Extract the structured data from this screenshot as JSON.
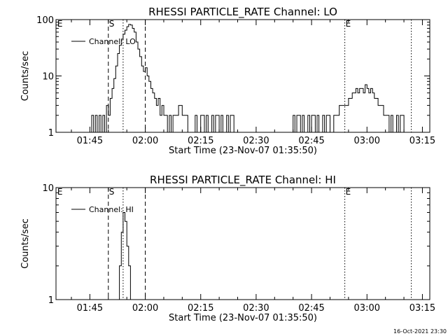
{
  "footer_timestamp": "16-Oct-2021 23:30",
  "chart_data": [
    {
      "type": "line",
      "title": "RHESSI PARTICLE_RATE Channel: LO",
      "xlabel": "Start Time (23-Nov-07 01:35:50)",
      "ylabel": "Counts/sec",
      "yscale": "log",
      "ylim": [
        1,
        100
      ],
      "ytick_values": [
        1,
        10,
        100
      ],
      "ytick_labels": [
        "1",
        "10",
        "100"
      ],
      "xlim": [
        "01:35:50",
        "03:17:00"
      ],
      "xtick_values": [
        "01:45",
        "02:00",
        "02:15",
        "02:30",
        "02:45",
        "03:00",
        "03:15"
      ],
      "xtick_labels": [
        "01:45",
        "02:00",
        "02:15",
        "02:30",
        "02:45",
        "03:00",
        "03:15"
      ],
      "legend": {
        "placement": "top-left",
        "entries": [
          "Channel: LO"
        ]
      },
      "markers": [
        {
          "time": "01:36",
          "label": "E",
          "style": "none"
        },
        {
          "time": "01:50",
          "label": "",
          "style": "dashed"
        },
        {
          "time": "01:50",
          "label": "S",
          "style": "none"
        },
        {
          "time": "01:54",
          "label": "",
          "style": "dotted"
        },
        {
          "time": "02:00",
          "label": "",
          "style": "dashed"
        },
        {
          "time": "02:54",
          "label": "",
          "style": "dotted"
        },
        {
          "time": "02:54",
          "label": "E",
          "style": "none"
        },
        {
          "time": "03:12",
          "label": "",
          "style": "dotted"
        }
      ],
      "series": [
        {
          "x": [
            "01:45:00",
            "01:45:30",
            "01:46:00",
            "01:46:30",
            "01:47:00",
            "01:47:30",
            "01:48:00",
            "01:48:30",
            "01:49:00",
            "01:49:30",
            "01:50:00",
            "01:50:30",
            "01:51:00",
            "01:51:30",
            "01:52:00",
            "01:52:30",
            "01:53:00",
            "01:53:30",
            "01:54:00",
            "01:54:30",
            "01:55:00",
            "01:55:30",
            "01:56:00",
            "01:56:30",
            "01:57:00",
            "01:57:30",
            "01:58:00",
            "01:58:30",
            "01:59:00",
            "01:59:30",
            "02:00:00",
            "02:00:30",
            "02:01:00",
            "02:01:30",
            "02:02:00",
            "02:02:30",
            "02:03:00",
            "02:03:30",
            "02:04:00",
            "02:04:30",
            "02:05:00",
            "02:05:30",
            "02:06:00",
            "02:06:30",
            "02:07:00",
            "02:07:30",
            "02:08:00",
            "02:08:30",
            "02:09:00",
            "02:09:30",
            "02:10:00",
            "02:10:30",
            "02:11:00",
            "02:11:30",
            "02:12:00",
            "02:12:30",
            "02:13:00",
            "02:13:30",
            "02:14:00",
            "02:15:00",
            "02:16:00",
            "02:16:30",
            "02:17:00",
            "02:18:00",
            "02:18:30",
            "02:19:00",
            "02:20:00",
            "02:20:30",
            "02:21:00",
            "02:22:00",
            "02:22:30",
            "02:23:00",
            "02:24:00",
            "02:40:00",
            "02:40:30",
            "02:41:00",
            "02:42:00",
            "02:42:30",
            "02:43:00",
            "02:44:00",
            "02:44:30",
            "02:45:00",
            "02:46:00",
            "02:46:30",
            "02:47:00",
            "02:48:00",
            "02:48:30",
            "02:49:00",
            "02:50:00",
            "02:51:00",
            "02:51:30",
            "02:52:00",
            "02:52:30",
            "02:53:00",
            "02:53:30",
            "02:54:00",
            "02:54:30",
            "02:55:00",
            "02:55:30",
            "02:56:00",
            "02:56:30",
            "02:57:00",
            "02:57:30",
            "02:58:00",
            "02:58:30",
            "02:59:00",
            "02:59:30",
            "03:00:00",
            "03:00:30",
            "03:01:00",
            "03:01:30",
            "03:02:00",
            "03:02:30",
            "03:03:00",
            "03:03:30",
            "03:04:00",
            "03:04:30",
            "03:05:00",
            "03:06:00",
            "03:06:30",
            "03:07:00",
            "03:08:00",
            "03:08:30",
            "03:09:00",
            "03:10:00"
          ],
          "y": [
            1,
            2,
            1,
            2,
            1,
            2,
            1,
            2,
            1,
            3,
            2,
            4,
            6,
            9,
            15,
            25,
            35,
            45,
            55,
            65,
            75,
            82,
            80,
            70,
            60,
            40,
            30,
            22,
            15,
            12,
            14,
            10,
            8,
            6,
            5,
            4,
            3,
            4,
            2,
            3,
            2,
            2,
            1,
            2,
            1,
            2,
            2,
            2,
            3,
            3,
            2,
            2,
            2,
            1,
            1,
            1,
            1,
            2,
            1,
            2,
            1,
            2,
            1,
            2,
            1,
            2,
            1,
            2,
            1,
            2,
            1,
            2,
            1,
            2,
            1,
            2,
            1,
            2,
            1,
            2,
            1,
            2,
            1,
            2,
            1,
            2,
            1,
            2,
            1,
            2,
            2,
            2,
            3,
            3,
            3,
            3,
            3,
            4,
            4,
            5,
            5,
            6,
            5,
            6,
            6,
            5,
            7,
            6,
            5,
            6,
            5,
            4,
            4,
            3,
            3,
            3,
            2,
            2,
            1,
            2,
            1,
            2,
            1,
            2,
            1
          ]
        }
      ]
    },
    {
      "type": "line",
      "title": "RHESSI PARTICLE_RATE Channel: HI",
      "xlabel": "Start Time (23-Nov-07 01:35:50)",
      "ylabel": "Counts/sec",
      "yscale": "log",
      "ylim": [
        1,
        10
      ],
      "ytick_values": [
        1,
        10
      ],
      "ytick_labels": [
        "1",
        "10"
      ],
      "xlim": [
        "01:35:50",
        "03:17:00"
      ],
      "xtick_values": [
        "01:45",
        "02:00",
        "02:15",
        "02:30",
        "02:45",
        "03:00",
        "03:15"
      ],
      "xtick_labels": [
        "01:45",
        "02:00",
        "02:15",
        "02:30",
        "02:45",
        "03:00",
        "03:15"
      ],
      "legend": {
        "placement": "top-left",
        "entries": [
          "Channel: HI"
        ]
      },
      "markers": [
        {
          "time": "01:36",
          "label": "E",
          "style": "none"
        },
        {
          "time": "01:50",
          "label": "",
          "style": "dashed"
        },
        {
          "time": "01:50",
          "label": "S",
          "style": "none"
        },
        {
          "time": "01:54",
          "label": "",
          "style": "dotted"
        },
        {
          "time": "02:00",
          "label": "",
          "style": "dashed"
        },
        {
          "time": "02:54",
          "label": "",
          "style": "dotted"
        },
        {
          "time": "02:54",
          "label": "E",
          "style": "none"
        },
        {
          "time": "03:12",
          "label": "",
          "style": "dotted"
        }
      ],
      "series": [
        {
          "x": [
            "01:52:30",
            "01:53:00",
            "01:53:30",
            "01:54:00",
            "01:54:30",
            "01:55:00",
            "01:55:30",
            "01:56:00"
          ],
          "y": [
            1,
            2,
            4,
            6,
            5,
            3,
            2,
            1
          ]
        }
      ]
    }
  ]
}
